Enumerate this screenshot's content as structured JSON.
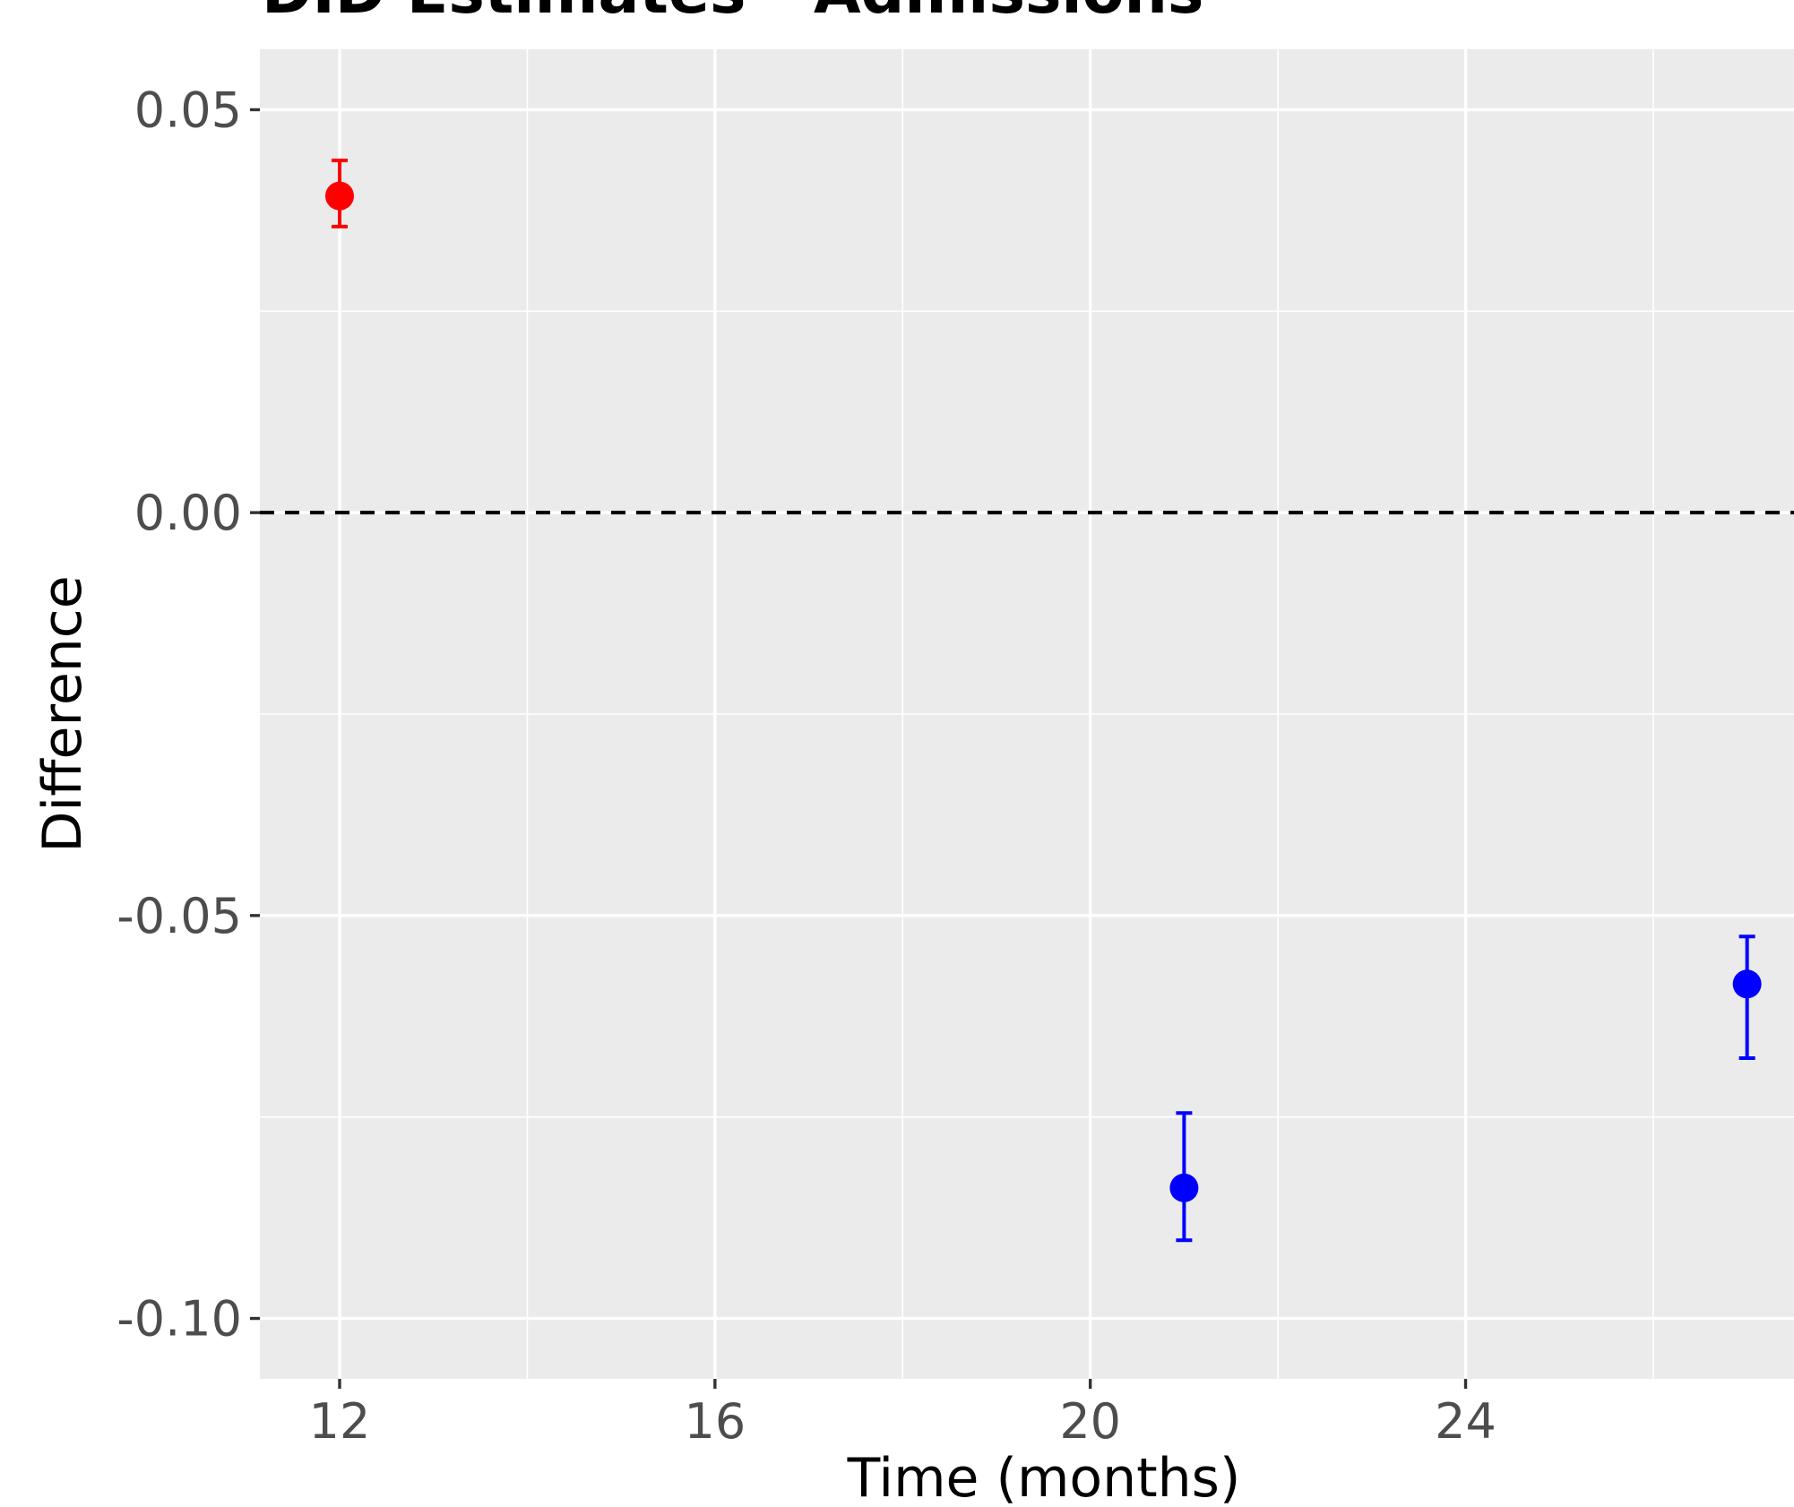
{
  "chart_data": {
    "type": "scatter",
    "title": "DID Estimates - Admissions",
    "xlabel": "Time (months)",
    "ylabel": "Difference",
    "xlim": [
      11.15,
      27.5
    ],
    "ylim": [
      -0.1075,
      0.0575
    ],
    "x_ticks": [
      12,
      16,
      20,
      24
    ],
    "x_tick_labels": [
      "12",
      "16",
      "20",
      "24"
    ],
    "x_minor_ticks": [
      14,
      18,
      22,
      26
    ],
    "y_ticks": [
      0.05,
      0.0,
      -0.05,
      -0.1
    ],
    "y_tick_labels": [
      "0.05",
      "0.00",
      "-0.05",
      "-0.10"
    ],
    "y_minor_ticks": [
      0.025,
      -0.025,
      -0.075
    ],
    "grid": true,
    "reference_line": {
      "y": 0,
      "style": "dashed",
      "color": "#000000"
    },
    "points": [
      {
        "x": 12,
        "y": 0.0393,
        "ymin": 0.0355,
        "ymax": 0.0437,
        "color": "#ff0000"
      },
      {
        "x": 21,
        "y": -0.0838,
        "ymin": -0.0903,
        "ymax": -0.0745,
        "color": "#0000ff"
      },
      {
        "x": 27,
        "y": -0.0585,
        "ymin": -0.0677,
        "ymax": -0.0526,
        "color": "#0000ff"
      }
    ]
  }
}
